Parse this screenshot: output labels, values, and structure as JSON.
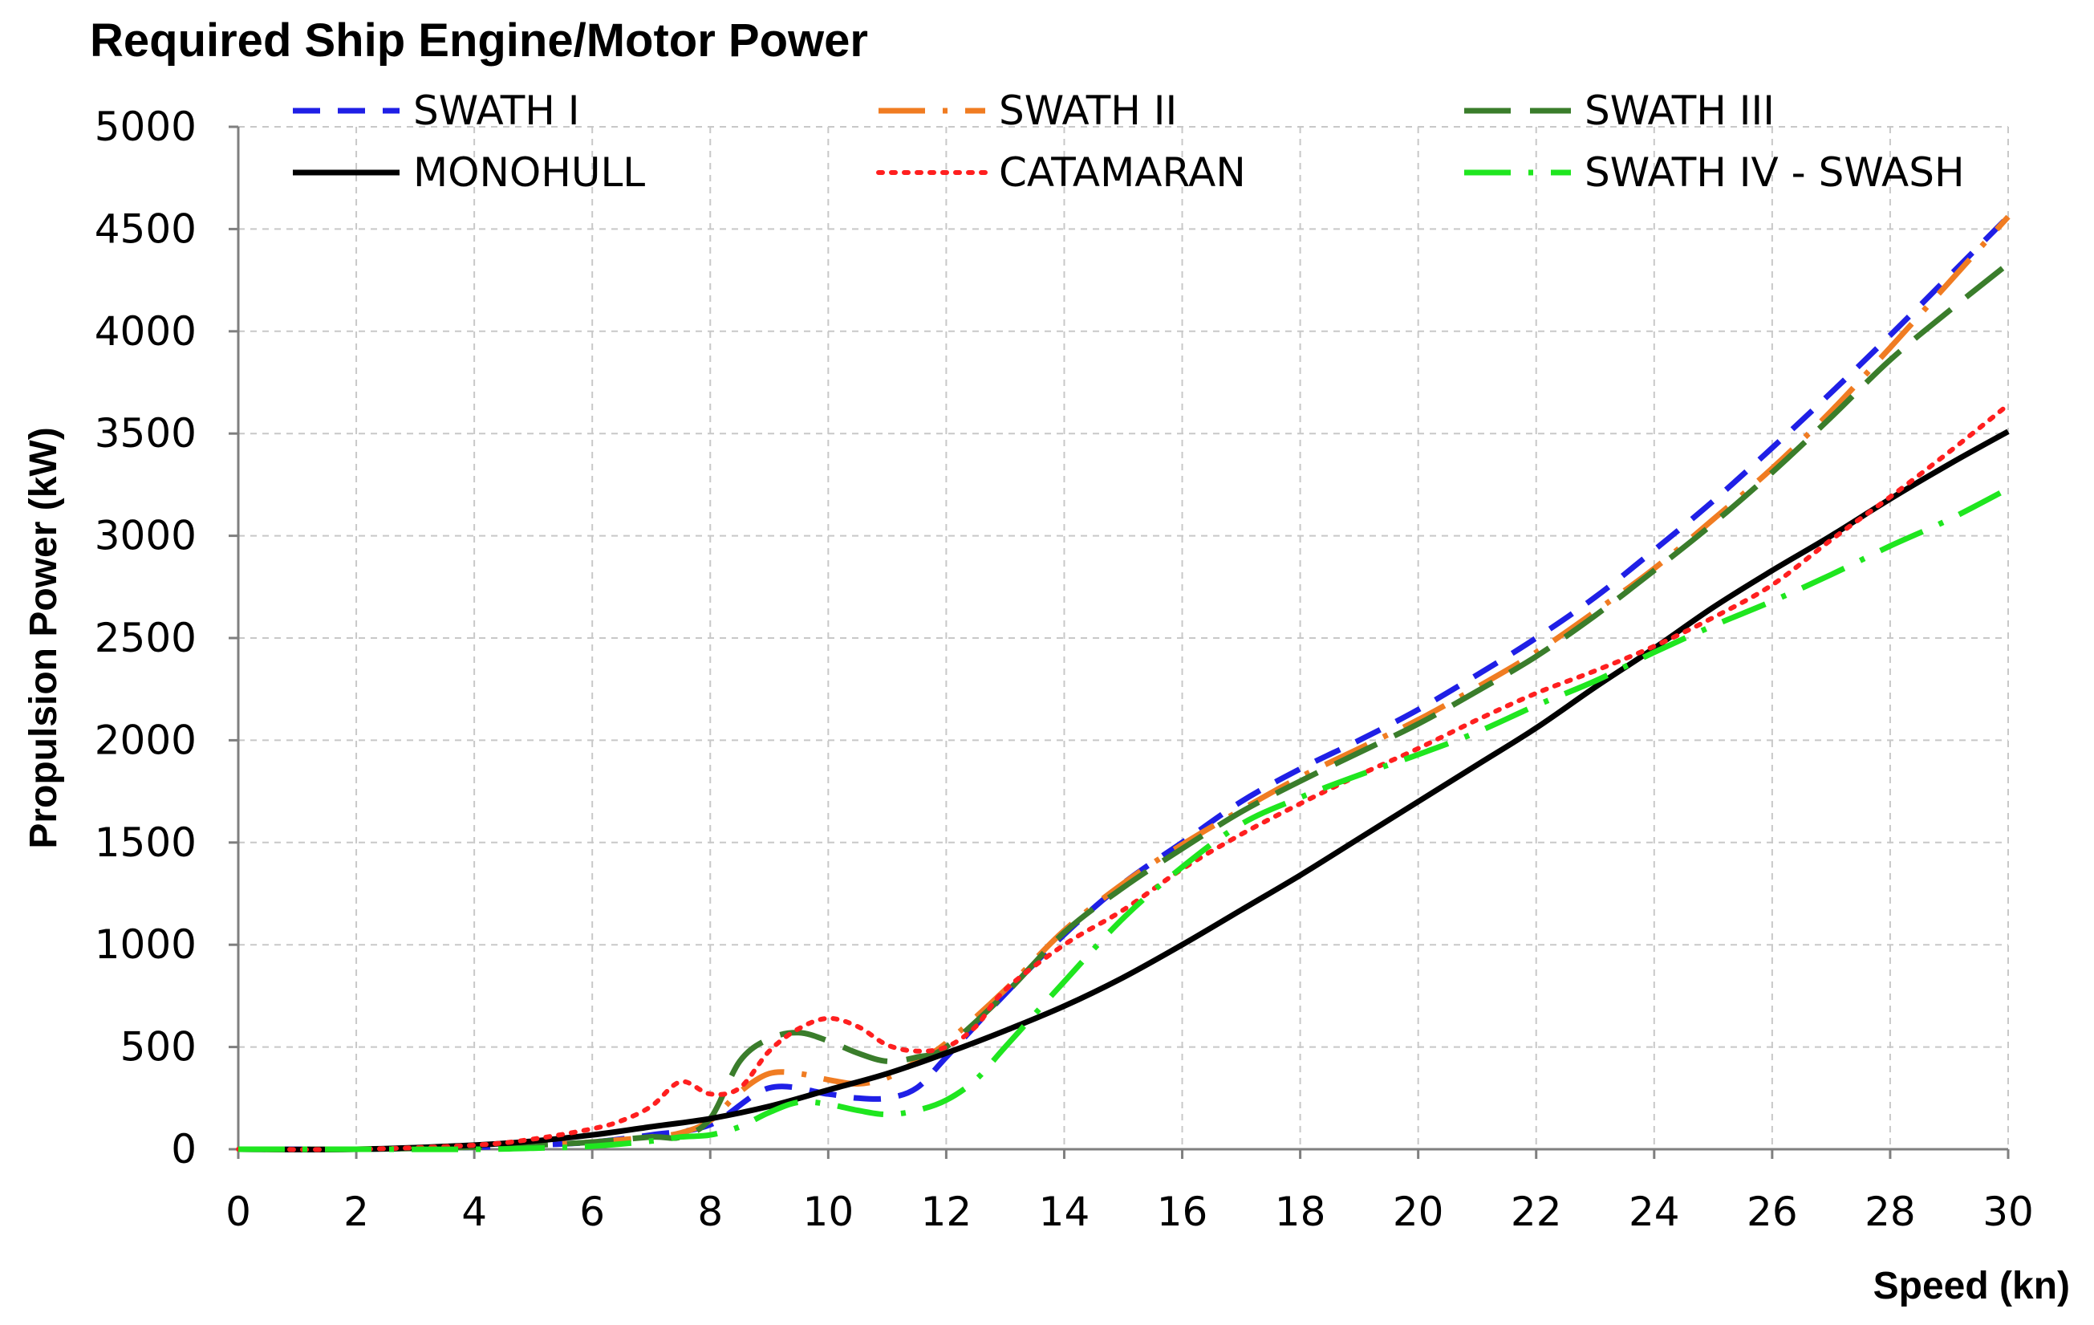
{
  "chart_data": {
    "type": "line",
    "title": "Required Ship Engine/Motor Power",
    "xlabel": "Speed (kn)",
    "ylabel": "Propulsion Power  (kW)",
    "xlim": [
      0,
      30
    ],
    "ylim": [
      0,
      5000
    ],
    "xticks": [
      0,
      2,
      4,
      6,
      8,
      10,
      12,
      14,
      16,
      18,
      20,
      22,
      24,
      26,
      28,
      30
    ],
    "yticks": [
      0,
      500,
      1000,
      1500,
      2000,
      2500,
      3000,
      3500,
      4000,
      4500,
      5000
    ],
    "grid": true,
    "legend_position": "top",
    "series": [
      {
        "name": "SWATH I",
        "color": "#1f1fe6",
        "style": "dash",
        "x": [
          0,
          2,
          4,
          5,
          6,
          7,
          8,
          9,
          10,
          10.5,
          11,
          11.5,
          12,
          13,
          14,
          15,
          16,
          17,
          18,
          19,
          20,
          21,
          22,
          23,
          24,
          25,
          26,
          27,
          28,
          29,
          30
        ],
        "y": [
          0,
          0,
          10,
          20,
          35,
          70,
          120,
          300,
          270,
          250,
          250,
          300,
          450,
          760,
          1050,
          1300,
          1500,
          1700,
          1860,
          2000,
          2150,
          2320,
          2500,
          2700,
          2930,
          3170,
          3430,
          3700,
          3980,
          4270,
          4560
        ]
      },
      {
        "name": "SWATH II",
        "color": "#f07c22",
        "style": "long-dash-dot",
        "x": [
          0,
          2,
          4,
          5,
          6,
          7,
          7.5,
          8,
          8.5,
          9,
          9.5,
          10,
          10.5,
          11,
          11.5,
          12,
          13,
          14,
          15,
          16,
          17,
          18,
          19,
          20,
          21,
          22,
          23,
          24,
          25,
          26,
          27,
          28,
          29,
          30
        ],
        "y": [
          0,
          0,
          10,
          20,
          35,
          60,
          80,
          140,
          280,
          370,
          370,
          340,
          320,
          350,
          430,
          520,
          780,
          1070,
          1300,
          1490,
          1660,
          1820,
          1960,
          2100,
          2260,
          2430,
          2630,
          2840,
          3080,
          3330,
          3610,
          3920,
          4240,
          4560
        ]
      },
      {
        "name": "SWATH III",
        "color": "#3a7d2b",
        "style": "long-dash",
        "x": [
          0,
          2,
          4,
          5,
          6,
          7,
          7.5,
          8,
          8.5,
          9,
          9.5,
          10,
          10.5,
          11,
          11.5,
          12,
          13,
          14,
          15,
          16,
          17,
          18,
          19,
          20,
          21,
          22,
          23,
          24,
          25,
          26,
          27,
          28,
          29,
          30
        ],
        "y": [
          0,
          0,
          10,
          20,
          35,
          60,
          60,
          150,
          430,
          540,
          570,
          530,
          470,
          430,
          450,
          500,
          760,
          1060,
          1280,
          1470,
          1650,
          1800,
          1940,
          2080,
          2240,
          2410,
          2610,
          2830,
          3060,
          3310,
          3580,
          3860,
          4100,
          4330
        ]
      },
      {
        "name": "MONOHULL",
        "color": "#000000",
        "style": "solid",
        "x": [
          0,
          2,
          4,
          5,
          6,
          7,
          8,
          9,
          10,
          11,
          12,
          13,
          14,
          15,
          16,
          17,
          18,
          19,
          20,
          21,
          22,
          23,
          24,
          25,
          26,
          27,
          28,
          29,
          30
        ],
        "y": [
          0,
          0,
          20,
          40,
          70,
          110,
          150,
          210,
          290,
          370,
          470,
          580,
          700,
          840,
          1000,
          1170,
          1340,
          1520,
          1700,
          1880,
          2060,
          2260,
          2450,
          2650,
          2830,
          3000,
          3180,
          3350,
          3510
        ]
      },
      {
        "name": "CATAMARAN",
        "color": "#ff1f1f",
        "style": "dot",
        "x": [
          0,
          2,
          4,
          5,
          6,
          6.5,
          7,
          7.5,
          8,
          8.5,
          9,
          9.5,
          10,
          10.5,
          11,
          11.5,
          12,
          12.5,
          13,
          14,
          15,
          16,
          17,
          18,
          19,
          20,
          21,
          22,
          23,
          24,
          25,
          26,
          27,
          28,
          29,
          30
        ],
        "y": [
          0,
          0,
          20,
          50,
          100,
          140,
          210,
          330,
          270,
          300,
          480,
          590,
          640,
          600,
          510,
          480,
          500,
          600,
          780,
          1000,
          1170,
          1370,
          1540,
          1690,
          1830,
          1960,
          2100,
          2230,
          2340,
          2460,
          2600,
          2760,
          2980,
          3190,
          3410,
          3640
        ]
      },
      {
        "name": "SWATH IV - SWASH",
        "color": "#1fe61f",
        "style": "long-dash-dot",
        "x": [
          0,
          2,
          4,
          5,
          6,
          7,
          7.5,
          8,
          8.5,
          9,
          9.5,
          10,
          10.5,
          11,
          11.5,
          12,
          12.5,
          13,
          14,
          15,
          16,
          17,
          18,
          19,
          20,
          21,
          22,
          23,
          24,
          25,
          26,
          27,
          28,
          29,
          30
        ],
        "y": [
          0,
          0,
          0,
          5,
          15,
          40,
          60,
          70,
          110,
          180,
          230,
          220,
          190,
          170,
          190,
          240,
          340,
          500,
          820,
          1130,
          1380,
          1590,
          1720,
          1830,
          1930,
          2040,
          2170,
          2290,
          2430,
          2560,
          2680,
          2810,
          2950,
          3080,
          3230
        ]
      }
    ]
  }
}
